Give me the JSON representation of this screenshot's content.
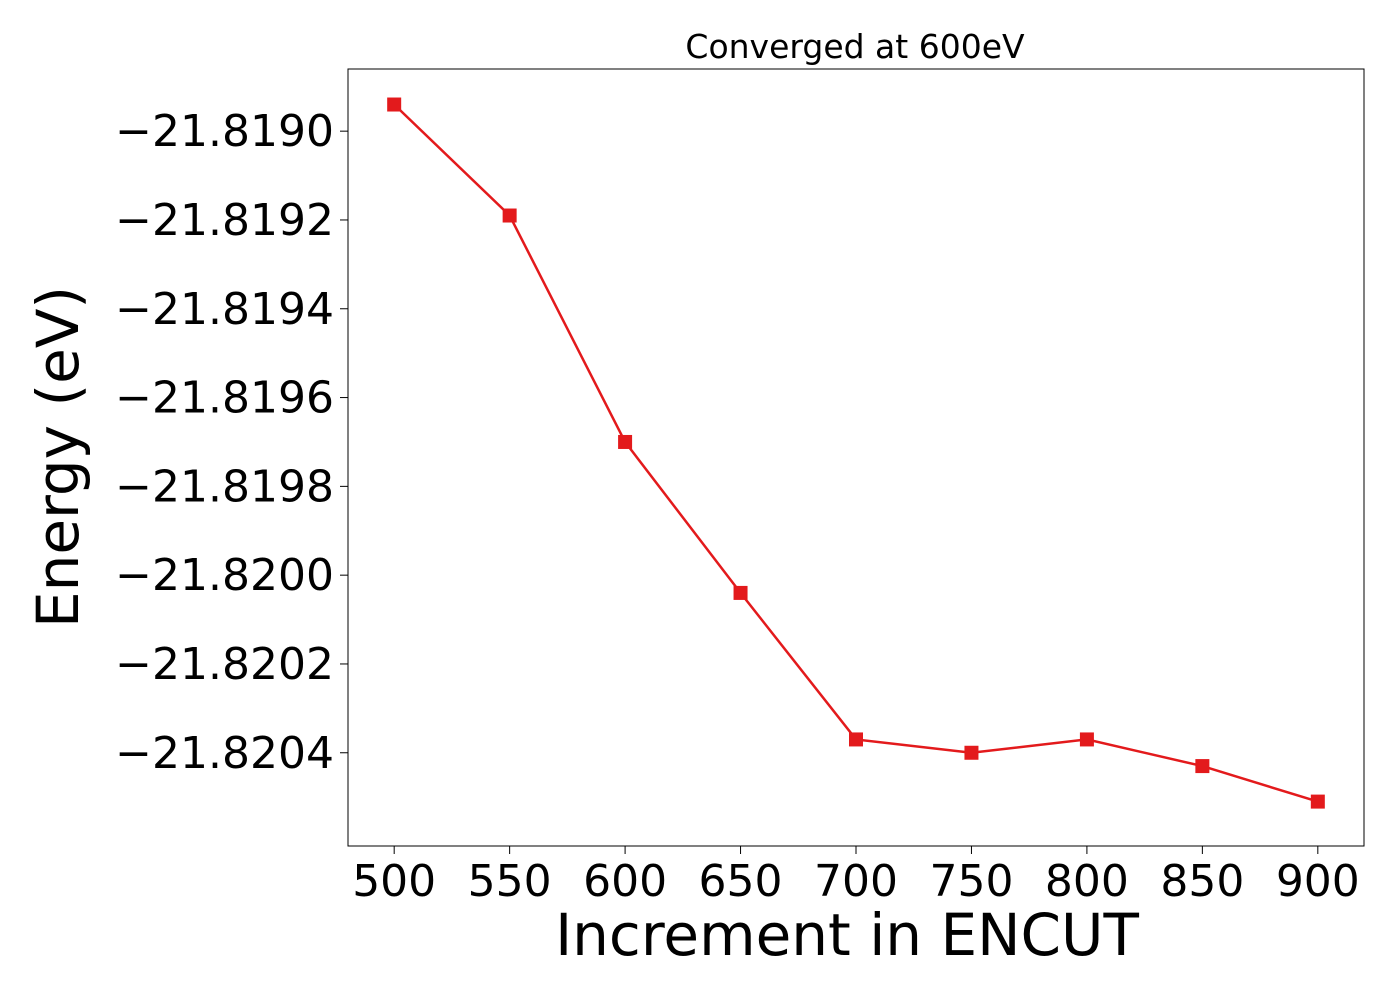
{
  "chart_data": {
    "type": "line",
    "title": "Converged at 600eV",
    "xlabel": "Increment in ENCUT",
    "ylabel": "Energy (eV)",
    "x": [
      500,
      550,
      600,
      650,
      700,
      750,
      800,
      850,
      900
    ],
    "series": [
      {
        "values": [
          -21.81894,
          -21.81919,
          -21.8197,
          -21.82004,
          -21.82037,
          -21.8204,
          -21.82037,
          -21.82043,
          -21.82051
        ],
        "color": "#e31a1c",
        "marker": "square"
      }
    ],
    "xticks": [
      500,
      550,
      600,
      650,
      700,
      750,
      800,
      850,
      900
    ],
    "xtick_labels": [
      "500",
      "550",
      "600",
      "650",
      "700",
      "750",
      "800",
      "850",
      "900"
    ],
    "yticks": [
      -21.819,
      -21.8192,
      -21.8194,
      -21.8196,
      -21.8198,
      -21.82,
      -21.8202,
      -21.8204
    ],
    "ytick_labels": [
      "−21.8190",
      "−21.8192",
      "−21.8194",
      "−21.8196",
      "−21.8198",
      "−21.8200",
      "−21.8202",
      "−21.8204"
    ],
    "xlim": [
      480,
      920
    ],
    "ylim": [
      -21.82061,
      -21.81886
    ],
    "grid": false,
    "legend": "none"
  }
}
